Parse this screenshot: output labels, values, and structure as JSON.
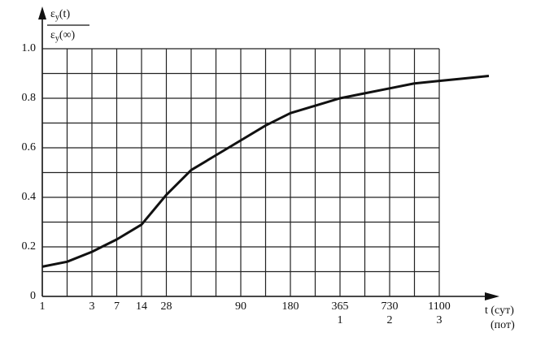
{
  "chart_data": {
    "type": "line",
    "y_label": {
      "numerator": [
        "ε",
        "y",
        "(t)"
      ],
      "denominator": [
        "ε",
        "y",
        "(∞)"
      ]
    },
    "x_label": [
      "t (сут)",
      "(пот)"
    ],
    "categories": [
      "1",
      null,
      "3",
      "7",
      "14",
      "28",
      null,
      null,
      "90",
      null,
      "180",
      null,
      "365",
      null,
      "730",
      null,
      "1100",
      null,
      null
    ],
    "categories_2": [
      null,
      null,
      null,
      null,
      null,
      null,
      null,
      null,
      null,
      null,
      null,
      null,
      "1",
      null,
      "2",
      null,
      "3",
      null,
      null
    ],
    "values": [
      0.12,
      0.14,
      0.18,
      0.23,
      0.29,
      0.41,
      0.51,
      0.57,
      0.63,
      0.69,
      0.74,
      0.77,
      0.8,
      0.82,
      0.84,
      0.86,
      0.87,
      0.88,
      0.89
    ],
    "color": "#111111",
    "ylim": [
      0,
      1.0
    ],
    "yticks": [
      0,
      0.2,
      0.4,
      0.6,
      0.8,
      {
        "value": 1.0,
        "label": "1.0"
      }
    ],
    "y_minor_grid": [
      0.1,
      0.3,
      0.5,
      0.7,
      0.9
    ],
    "grid": true
  }
}
